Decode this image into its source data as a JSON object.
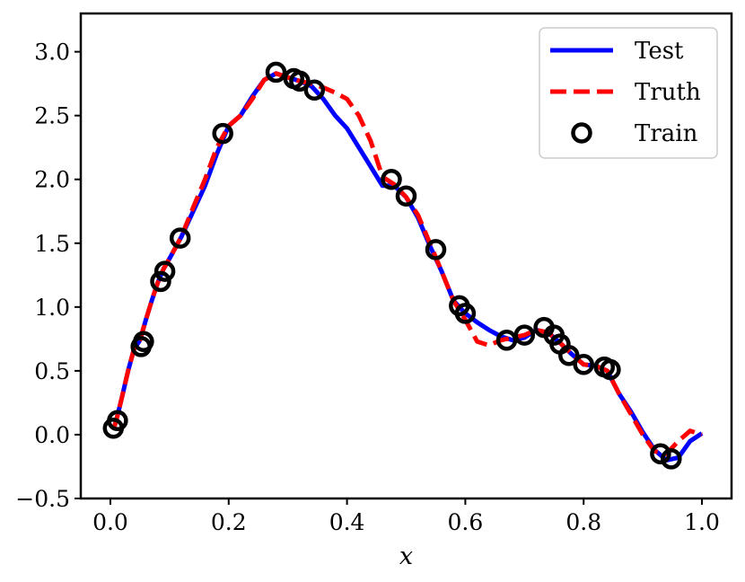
{
  "chart_data": {
    "type": "line",
    "title": "",
    "xlabel": "x",
    "ylabel": "",
    "xlim": [
      -0.05,
      1.05
    ],
    "ylim": [
      -0.5,
      3.3
    ],
    "xticks": [
      0.0,
      0.2,
      0.4,
      0.6,
      0.8,
      1.0
    ],
    "xtick_labels": [
      "0.0",
      "0.2",
      "0.4",
      "0.6",
      "0.8",
      "1.0"
    ],
    "yticks": [
      -0.5,
      0.0,
      0.5,
      1.0,
      1.5,
      2.0,
      2.5,
      3.0
    ],
    "ytick_labels": [
      "−0.5",
      "0.0",
      "0.5",
      "1.0",
      "1.5",
      "2.0",
      "2.5",
      "3.0"
    ],
    "grid": false,
    "legend_position": "top-right",
    "series": [
      {
        "name": "Test",
        "style": "solid",
        "color": "#0000ff",
        "x": [
          0.005,
          0.01,
          0.02,
          0.03,
          0.04,
          0.05,
          0.06,
          0.07,
          0.08,
          0.09,
          0.1,
          0.12,
          0.14,
          0.16,
          0.18,
          0.2,
          0.22,
          0.24,
          0.26,
          0.28,
          0.3,
          0.32,
          0.34,
          0.36,
          0.38,
          0.4,
          0.42,
          0.44,
          0.46,
          0.48,
          0.5,
          0.52,
          0.54,
          0.56,
          0.58,
          0.6,
          0.62,
          0.64,
          0.66,
          0.68,
          0.7,
          0.72,
          0.74,
          0.76,
          0.78,
          0.8,
          0.82,
          0.84,
          0.86,
          0.88,
          0.9,
          0.92,
          0.94,
          0.96,
          0.98,
          1.0
        ],
        "y": [
          0.04,
          0.11,
          0.3,
          0.5,
          0.67,
          0.74,
          0.9,
          1.05,
          1.19,
          1.3,
          1.38,
          1.55,
          1.75,
          1.95,
          2.2,
          2.42,
          2.5,
          2.65,
          2.78,
          2.83,
          2.8,
          2.77,
          2.73,
          2.63,
          2.5,
          2.4,
          2.25,
          2.1,
          1.95,
          1.95,
          1.86,
          1.7,
          1.48,
          1.28,
          1.05,
          0.95,
          0.88,
          0.82,
          0.77,
          0.74,
          0.76,
          0.82,
          0.8,
          0.72,
          0.63,
          0.55,
          0.54,
          0.5,
          0.32,
          0.18,
          0.02,
          -0.12,
          -0.2,
          -0.18,
          -0.05,
          0.01
        ]
      },
      {
        "name": "Truth",
        "style": "dashed",
        "color": "#ff0000",
        "x": [
          0.005,
          0.01,
          0.02,
          0.03,
          0.04,
          0.05,
          0.06,
          0.07,
          0.08,
          0.09,
          0.1,
          0.12,
          0.14,
          0.16,
          0.18,
          0.2,
          0.22,
          0.24,
          0.26,
          0.28,
          0.3,
          0.32,
          0.34,
          0.36,
          0.38,
          0.4,
          0.42,
          0.44,
          0.46,
          0.48,
          0.5,
          0.52,
          0.54,
          0.56,
          0.58,
          0.6,
          0.62,
          0.64,
          0.66,
          0.68,
          0.7,
          0.72,
          0.74,
          0.76,
          0.78,
          0.8,
          0.82,
          0.84,
          0.86,
          0.88,
          0.9,
          0.92,
          0.94,
          0.96,
          0.98,
          1.0
        ],
        "y": [
          0.04,
          0.11,
          0.3,
          0.5,
          0.67,
          0.74,
          0.9,
          1.05,
          1.19,
          1.3,
          1.38,
          1.55,
          1.78,
          2.0,
          2.25,
          2.42,
          2.5,
          2.63,
          2.78,
          2.83,
          2.8,
          2.77,
          2.75,
          2.72,
          2.68,
          2.63,
          2.5,
          2.3,
          2.02,
          1.96,
          1.86,
          1.72,
          1.5,
          1.28,
          1.05,
          0.9,
          0.73,
          0.7,
          0.74,
          0.76,
          0.78,
          0.82,
          0.8,
          0.72,
          0.63,
          0.55,
          0.54,
          0.5,
          0.32,
          0.16,
          0.0,
          -0.13,
          -0.15,
          -0.05,
          0.03,
          0.0
        ]
      },
      {
        "name": "Train",
        "style": "markers",
        "color": "#000000",
        "x": [
          0.005,
          0.012,
          0.052,
          0.056,
          0.085,
          0.092,
          0.118,
          0.19,
          0.28,
          0.31,
          0.32,
          0.345,
          0.475,
          0.5,
          0.55,
          0.59,
          0.6,
          0.67,
          0.7,
          0.733,
          0.75,
          0.76,
          0.775,
          0.8,
          0.835,
          0.845,
          0.93,
          0.948
        ],
        "y": [
          0.05,
          0.11,
          0.69,
          0.73,
          1.2,
          1.28,
          1.54,
          2.36,
          2.84,
          2.79,
          2.77,
          2.7,
          2.0,
          1.87,
          1.45,
          1.01,
          0.95,
          0.74,
          0.78,
          0.84,
          0.78,
          0.71,
          0.62,
          0.55,
          0.53,
          0.51,
          -0.15,
          -0.19
        ]
      }
    ]
  }
}
